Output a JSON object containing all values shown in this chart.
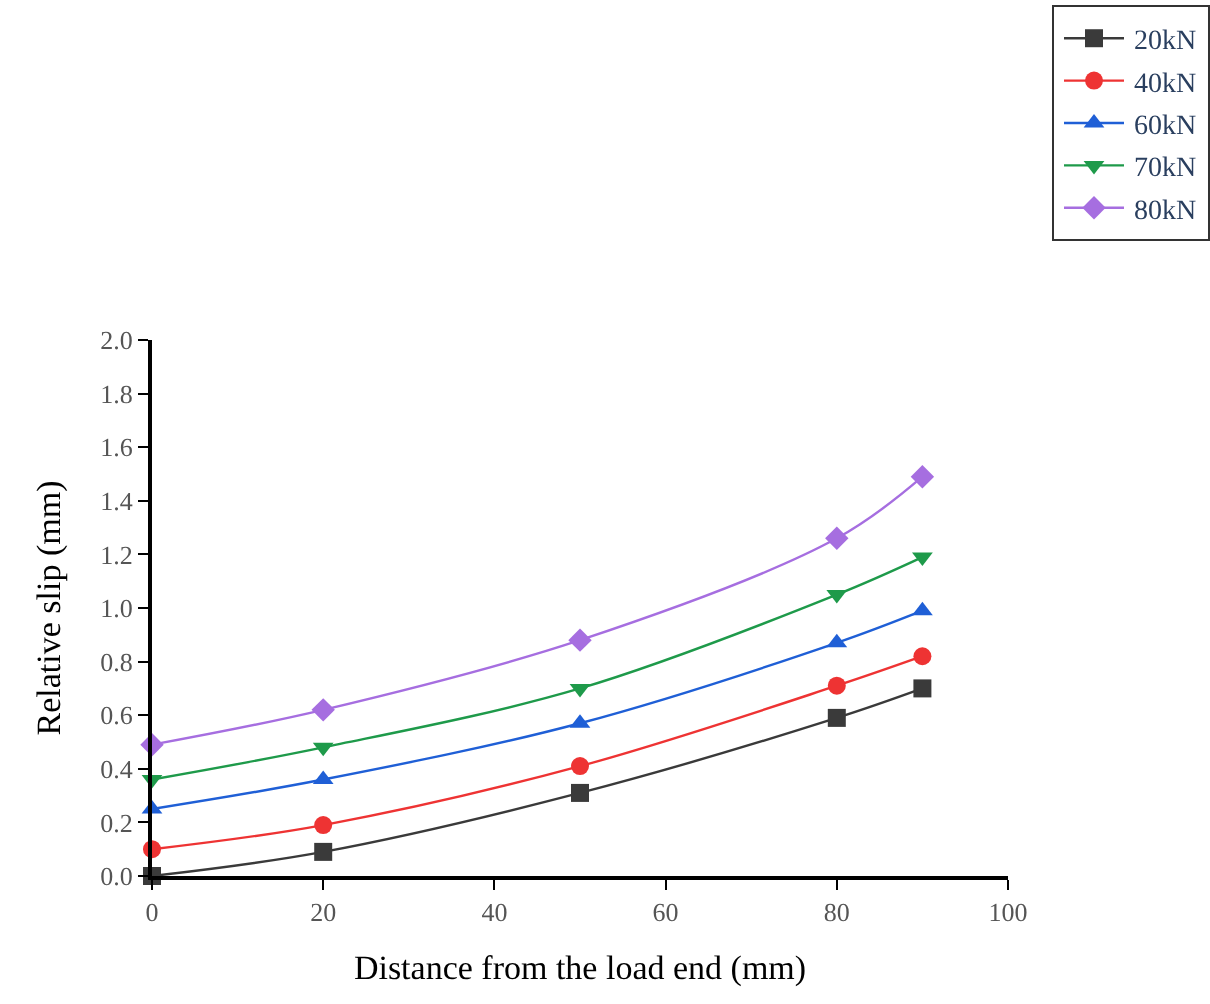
{
  "chart_data": {
    "type": "line",
    "xlabel": "Distance from the load end (mm)",
    "ylabel": "Relative slip (mm)",
    "x": [
      0,
      20,
      50,
      80,
      90
    ],
    "series": [
      {
        "name": "20kN",
        "color": "#3a3a3a",
        "marker": "square",
        "values": [
          0.0,
          0.09,
          0.31,
          0.59,
          0.7
        ]
      },
      {
        "name": "40kN",
        "color": "#ee3333",
        "marker": "circle",
        "values": [
          0.1,
          0.19,
          0.41,
          0.71,
          0.82
        ]
      },
      {
        "name": "60kN",
        "color": "#1f5fd6",
        "marker": "triangle",
        "values": [
          0.25,
          0.36,
          0.57,
          0.87,
          0.99
        ]
      },
      {
        "name": "70kN",
        "color": "#1e9a4a",
        "marker": "triangle-down",
        "values": [
          0.36,
          0.48,
          0.7,
          1.05,
          1.19
        ]
      },
      {
        "name": "80kN",
        "color": "#a66ee0",
        "marker": "diamond",
        "values": [
          0.49,
          0.62,
          0.88,
          1.26,
          1.49
        ]
      }
    ],
    "xlim": [
      0,
      100
    ],
    "xticks": [
      0,
      20,
      40,
      60,
      80,
      100
    ],
    "ylim": [
      0,
      2
    ],
    "yticks": [
      {
        "value": 0,
        "label": "0.0"
      },
      {
        "value": 0.2,
        "label": "0.2"
      },
      {
        "value": 0.4,
        "label": "0.4"
      },
      {
        "value": 0.6,
        "label": "0.6"
      },
      {
        "value": 0.8,
        "label": "0.8"
      },
      {
        "value": 1.0,
        "label": "1.0"
      },
      {
        "value": 1.2,
        "label": "1.2"
      },
      {
        "value": 1.4,
        "label": "1.4"
      },
      {
        "value": 1.6,
        "label": "1.6"
      },
      {
        "value": 1.8,
        "label": "1.8"
      },
      {
        "value": 2.0,
        "label": "2.0"
      }
    ],
    "grid": false,
    "legend": "top right",
    "line_style": "solid"
  }
}
